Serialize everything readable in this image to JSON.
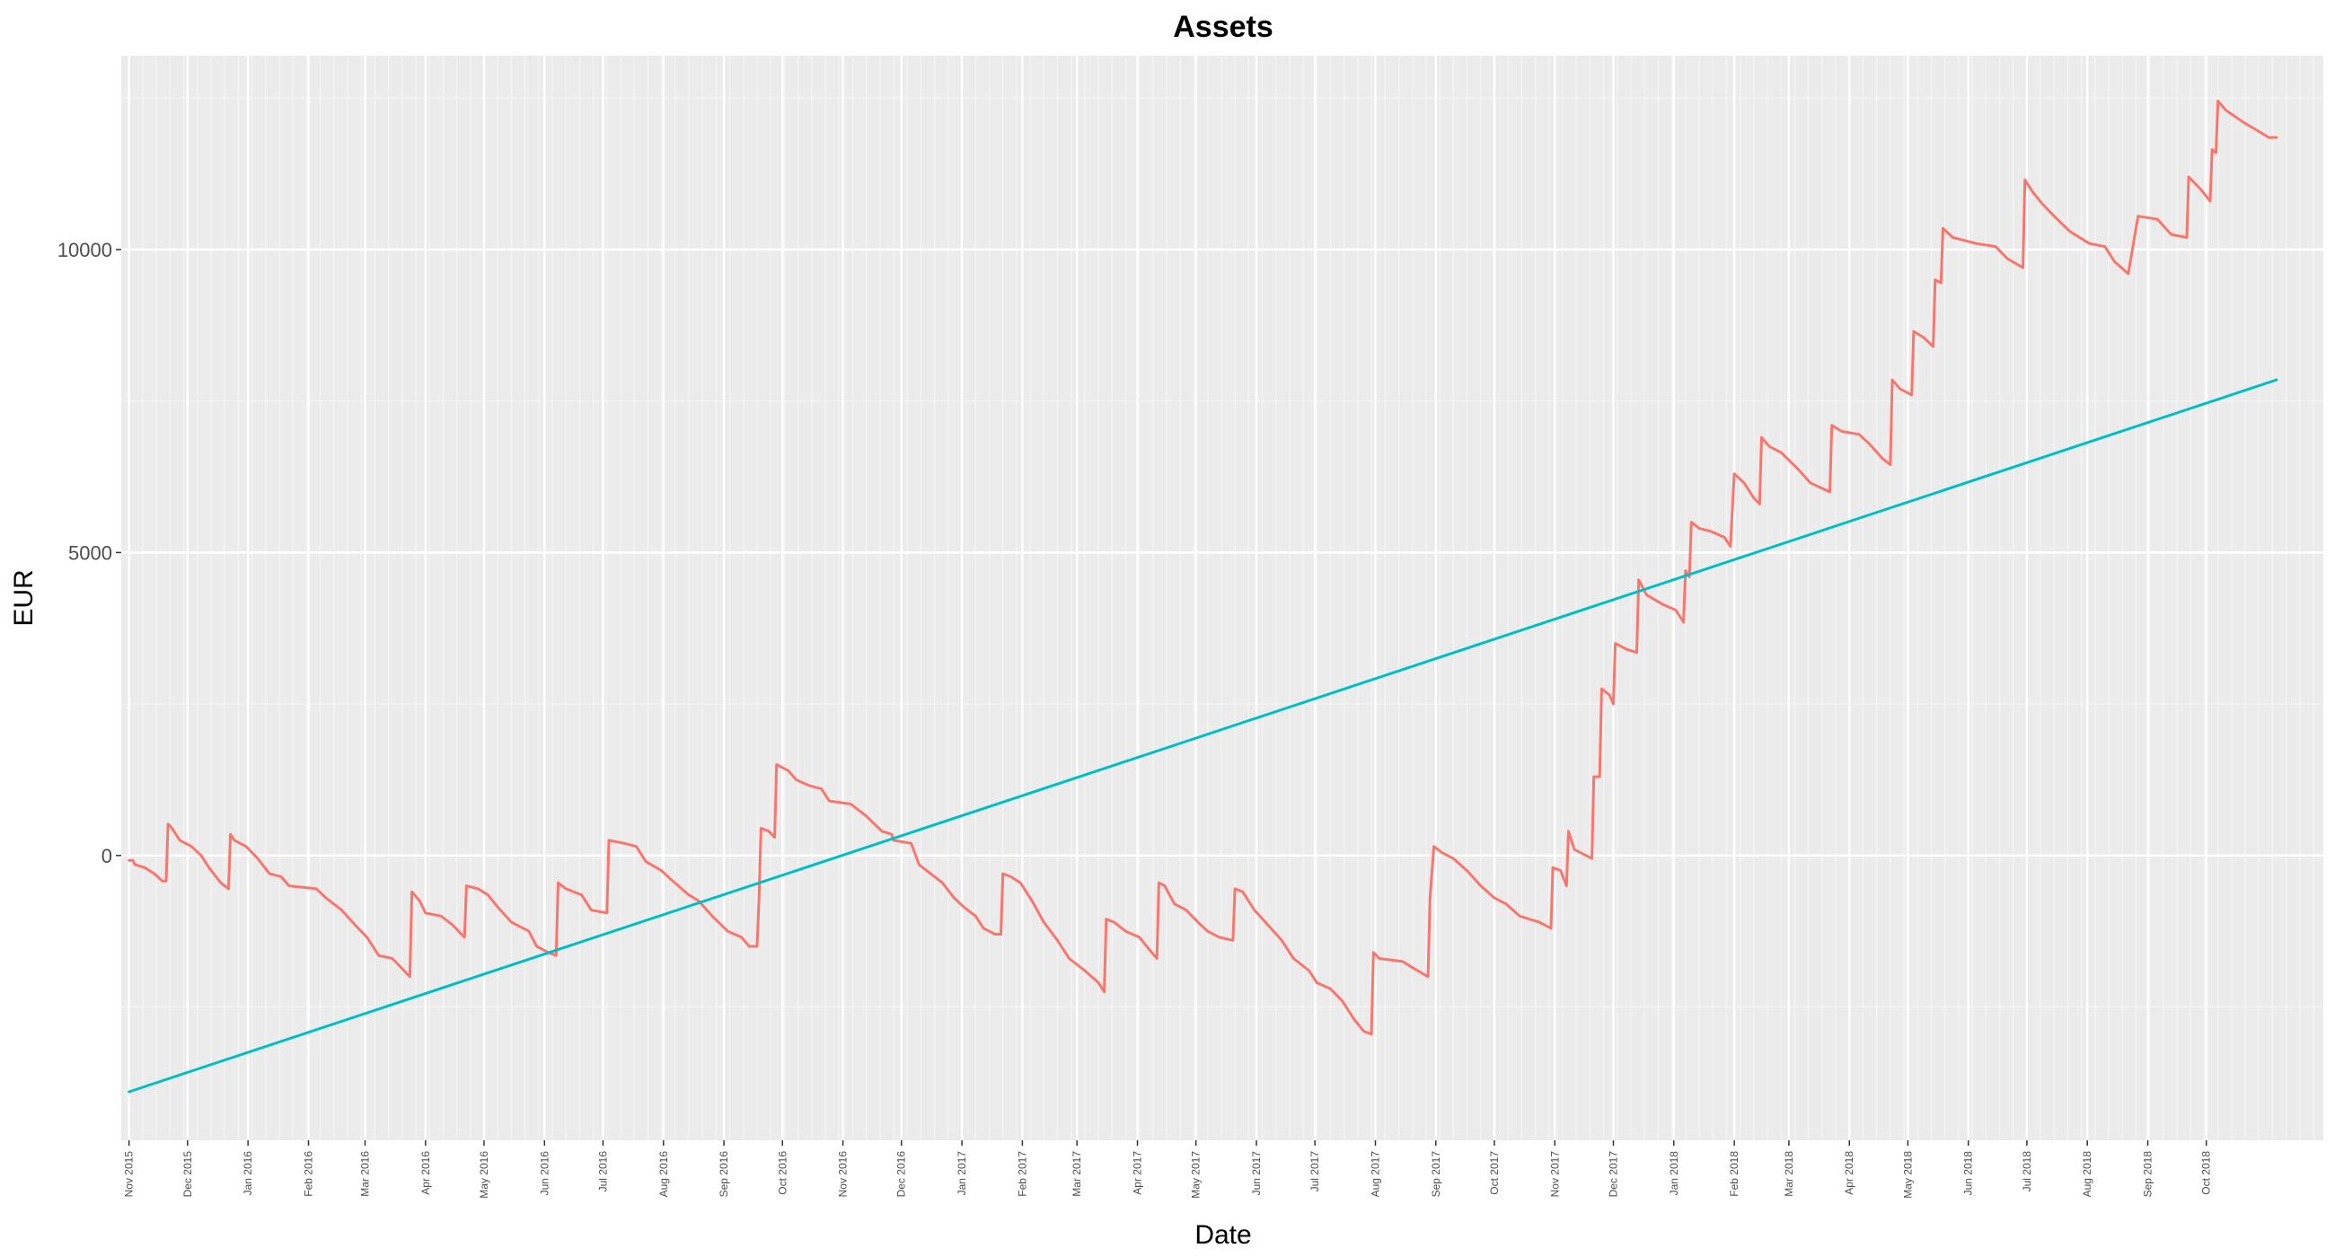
{
  "chart_data": {
    "type": "line",
    "title": "Assets",
    "xlabel": "Date",
    "ylabel": "EUR",
    "x_range": [
      "2015-10-28",
      "2018-11-30"
    ],
    "ylim": [
      -4700,
      13200
    ],
    "yticks": [
      0,
      5000,
      10000
    ],
    "ytick_labels": [
      "0",
      "5000",
      "10000"
    ],
    "xticks": [
      "2015-11-01",
      "2015-12-01",
      "2016-01-01",
      "2016-02-01",
      "2016-03-01",
      "2016-04-01",
      "2016-05-01",
      "2016-06-01",
      "2016-07-01",
      "2016-08-01",
      "2016-09-01",
      "2016-10-01",
      "2016-11-01",
      "2016-12-01",
      "2017-01-01",
      "2017-02-01",
      "2017-03-01",
      "2017-04-01",
      "2017-05-01",
      "2017-06-01",
      "2017-07-01",
      "2017-08-01",
      "2017-09-01",
      "2017-10-01",
      "2017-11-01",
      "2017-12-01",
      "2018-01-01",
      "2018-02-01",
      "2018-03-01",
      "2018-04-01",
      "2018-05-01",
      "2018-06-01",
      "2018-07-01",
      "2018-08-01",
      "2018-09-01",
      "2018-10-01"
    ],
    "xtick_labels": [
      "Nov 2015",
      "Dec 2015",
      "Jan 2016",
      "Feb 2016",
      "Mar 2016",
      "Apr 2016",
      "May 2016",
      "Jun 2016",
      "Jul 2016",
      "Aug 2016",
      "Sep 2016",
      "Oct 2016",
      "Nov 2016",
      "Dec 2016",
      "Jan 2017",
      "Feb 2017",
      "Mar 2017",
      "Apr 2017",
      "May 2017",
      "Jun 2017",
      "Jul 2017",
      "Aug 2017",
      "Sep 2017",
      "Oct 2017",
      "Nov 2017",
      "Dec 2017",
      "Jan 2018",
      "Feb 2018",
      "Mar 2018",
      "Apr 2018",
      "May 2018",
      "Jun 2018",
      "Jul 2018",
      "Aug 2018",
      "Sep 2018",
      "Oct 2018"
    ],
    "grid": true,
    "legend": "none",
    "series": [
      {
        "color": "#f8766d",
        "points": [
          [
            "2015-11-01",
            -80
          ],
          [
            "2015-11-03",
            -80
          ],
          [
            "2015-11-04",
            -150
          ],
          [
            "2015-11-09",
            -200
          ],
          [
            "2015-11-14",
            -300
          ],
          [
            "2015-11-18",
            -420
          ],
          [
            "2015-11-20",
            -420
          ],
          [
            "2015-11-21",
            520
          ],
          [
            "2015-11-23",
            450
          ],
          [
            "2015-11-27",
            250
          ],
          [
            "2015-12-03",
            150
          ],
          [
            "2015-12-08",
            0
          ],
          [
            "2015-12-12",
            -200
          ],
          [
            "2015-12-18",
            -450
          ],
          [
            "2015-12-22",
            -550
          ],
          [
            "2015-12-23",
            350
          ],
          [
            "2015-12-25",
            250
          ],
          [
            "2015-12-31",
            150
          ],
          [
            "2016-01-06",
            -50
          ],
          [
            "2016-01-12",
            -300
          ],
          [
            "2016-01-18",
            -350
          ],
          [
            "2016-01-22",
            -500
          ],
          [
            "2016-02-05",
            -550
          ],
          [
            "2016-02-10",
            -700
          ],
          [
            "2016-02-18",
            -900
          ],
          [
            "2016-02-25",
            -1150
          ],
          [
            "2016-03-02",
            -1350
          ],
          [
            "2016-03-08",
            -1650
          ],
          [
            "2016-03-15",
            -1700
          ],
          [
            "2016-03-21",
            -1900
          ],
          [
            "2016-03-24",
            -2000
          ],
          [
            "2016-03-25",
            -600
          ],
          [
            "2016-03-29",
            -750
          ],
          [
            "2016-04-01",
            -950
          ],
          [
            "2016-04-09",
            -1000
          ],
          [
            "2016-04-15",
            -1150
          ],
          [
            "2016-04-21",
            -1350
          ],
          [
            "2016-04-22",
            -500
          ],
          [
            "2016-04-28",
            -550
          ],
          [
            "2016-05-03",
            -650
          ],
          [
            "2016-05-08",
            -850
          ],
          [
            "2016-05-15",
            -1100
          ],
          [
            "2016-05-24",
            -1250
          ],
          [
            "2016-05-28",
            -1500
          ],
          [
            "2016-06-03",
            -1600
          ],
          [
            "2016-06-07",
            -1650
          ],
          [
            "2016-06-08",
            -450
          ],
          [
            "2016-06-12",
            -550
          ],
          [
            "2016-06-20",
            -650
          ],
          [
            "2016-06-25",
            -900
          ],
          [
            "2016-07-03",
            -950
          ],
          [
            "2016-07-04",
            250
          ],
          [
            "2016-07-12",
            200
          ],
          [
            "2016-07-18",
            150
          ],
          [
            "2016-07-23",
            -100
          ],
          [
            "2016-07-31",
            -250
          ],
          [
            "2016-08-05",
            -400
          ],
          [
            "2016-08-14",
            -650
          ],
          [
            "2016-08-19",
            -750
          ],
          [
            "2016-08-26",
            -1000
          ],
          [
            "2016-09-03",
            -1250
          ],
          [
            "2016-09-10",
            -1350
          ],
          [
            "2016-09-14",
            -1500
          ],
          [
            "2016-09-18",
            -1500
          ],
          [
            "2016-09-19",
            -700
          ],
          [
            "2016-09-20",
            450
          ],
          [
            "2016-09-24",
            400
          ],
          [
            "2016-09-27",
            300
          ],
          [
            "2016-09-28",
            1500
          ],
          [
            "2016-10-04",
            1400
          ],
          [
            "2016-10-08",
            1250
          ],
          [
            "2016-10-15",
            1150
          ],
          [
            "2016-10-21",
            1100
          ],
          [
            "2016-10-25",
            900
          ],
          [
            "2016-11-05",
            850
          ],
          [
            "2016-11-13",
            650
          ],
          [
            "2016-11-21",
            400
          ],
          [
            "2016-11-26",
            350
          ],
          [
            "2016-11-27",
            250
          ],
          [
            "2016-12-06",
            200
          ],
          [
            "2016-12-10",
            -150
          ],
          [
            "2016-12-16",
            -300
          ],
          [
            "2016-12-22",
            -450
          ],
          [
            "2016-12-28",
            -700
          ],
          [
            "2017-01-02",
            -850
          ],
          [
            "2017-01-08",
            -1000
          ],
          [
            "2017-01-12",
            -1200
          ],
          [
            "2017-01-18",
            -1300
          ],
          [
            "2017-01-21",
            -1300
          ],
          [
            "2017-01-22",
            -300
          ],
          [
            "2017-01-26",
            -350
          ],
          [
            "2017-01-31",
            -450
          ],
          [
            "2017-02-06",
            -750
          ],
          [
            "2017-02-12",
            -1100
          ],
          [
            "2017-02-19",
            -1400
          ],
          [
            "2017-02-25",
            -1700
          ],
          [
            "2017-03-05",
            -1900
          ],
          [
            "2017-03-12",
            -2100
          ],
          [
            "2017-03-15",
            -2250
          ],
          [
            "2017-03-16",
            -1050
          ],
          [
            "2017-03-20",
            -1100
          ],
          [
            "2017-03-26",
            -1250
          ],
          [
            "2017-04-02",
            -1350
          ],
          [
            "2017-04-07",
            -1550
          ],
          [
            "2017-04-11",
            -1700
          ],
          [
            "2017-04-12",
            -450
          ],
          [
            "2017-04-15",
            -500
          ],
          [
            "2017-04-20",
            -800
          ],
          [
            "2017-04-26",
            -900
          ],
          [
            "2017-05-02",
            -1100
          ],
          [
            "2017-05-07",
            -1250
          ],
          [
            "2017-05-13",
            -1350
          ],
          [
            "2017-05-20",
            -1400
          ],
          [
            "2017-05-21",
            -550
          ],
          [
            "2017-05-25",
            -600
          ],
          [
            "2017-05-31",
            -900
          ],
          [
            "2017-06-07",
            -1150
          ],
          [
            "2017-06-14",
            -1400
          ],
          [
            "2017-06-20",
            -1700
          ],
          [
            "2017-06-28",
            -1900
          ],
          [
            "2017-07-02",
            -2100
          ],
          [
            "2017-07-09",
            -2200
          ],
          [
            "2017-07-15",
            -2400
          ],
          [
            "2017-07-21",
            -2700
          ],
          [
            "2017-07-26",
            -2900
          ],
          [
            "2017-07-30",
            -2950
          ],
          [
            "2017-07-31",
            -1600
          ],
          [
            "2017-08-03",
            -1700
          ],
          [
            "2017-08-15",
            -1750
          ],
          [
            "2017-08-20",
            -1850
          ],
          [
            "2017-08-28",
            -2000
          ],
          [
            "2017-08-29",
            -700
          ],
          [
            "2017-08-31",
            150
          ],
          [
            "2017-09-04",
            50
          ],
          [
            "2017-09-10",
            -50
          ],
          [
            "2017-09-17",
            -250
          ],
          [
            "2017-09-24",
            -500
          ],
          [
            "2017-10-01",
            -700
          ],
          [
            "2017-10-07",
            -800
          ],
          [
            "2017-10-14",
            -1000
          ],
          [
            "2017-10-24",
            -1100
          ],
          [
            "2017-10-30",
            -1200
          ],
          [
            "2017-10-31",
            -200
          ],
          [
            "2017-11-04",
            -250
          ],
          [
            "2017-11-07",
            -500
          ],
          [
            "2017-11-08",
            400
          ],
          [
            "2017-11-11",
            100
          ],
          [
            "2017-11-20",
            -50
          ],
          [
            "2017-11-21",
            1300
          ],
          [
            "2017-11-24",
            1300
          ],
          [
            "2017-11-25",
            2750
          ],
          [
            "2017-11-29",
            2650
          ],
          [
            "2017-12-01",
            2500
          ],
          [
            "2017-12-02",
            3500
          ],
          [
            "2017-12-08",
            3400
          ],
          [
            "2017-12-13",
            3350
          ],
          [
            "2017-12-14",
            4550
          ],
          [
            "2017-12-18",
            4300
          ],
          [
            "2017-12-26",
            4150
          ],
          [
            "2018-01-02",
            4050
          ],
          [
            "2018-01-06",
            3850
          ],
          [
            "2018-01-07",
            4700
          ],
          [
            "2018-01-09",
            4600
          ],
          [
            "2018-01-10",
            5500
          ],
          [
            "2018-01-14",
            5400
          ],
          [
            "2018-01-20",
            5350
          ],
          [
            "2018-01-27",
            5250
          ],
          [
            "2018-01-30",
            5100
          ],
          [
            "2018-02-01",
            6300
          ],
          [
            "2018-02-06",
            6150
          ],
          [
            "2018-02-11",
            5900
          ],
          [
            "2018-02-14",
            5800
          ],
          [
            "2018-02-15",
            6900
          ],
          [
            "2018-02-19",
            6750
          ],
          [
            "2018-02-25",
            6650
          ],
          [
            "2018-03-05",
            6400
          ],
          [
            "2018-03-12",
            6150
          ],
          [
            "2018-03-22",
            6000
          ],
          [
            "2018-03-23",
            7100
          ],
          [
            "2018-03-28",
            7000
          ],
          [
            "2018-04-06",
            6950
          ],
          [
            "2018-04-11",
            6800
          ],
          [
            "2018-04-18",
            6550
          ],
          [
            "2018-04-22",
            6450
          ],
          [
            "2018-04-23",
            7850
          ],
          [
            "2018-04-27",
            7700
          ],
          [
            "2018-05-03",
            7600
          ],
          [
            "2018-05-04",
            8650
          ],
          [
            "2018-05-09",
            8550
          ],
          [
            "2018-05-14",
            8400
          ],
          [
            "2018-05-15",
            9500
          ],
          [
            "2018-05-18",
            9450
          ],
          [
            "2018-05-19",
            10350
          ],
          [
            "2018-05-24",
            10200
          ],
          [
            "2018-06-05",
            10100
          ],
          [
            "2018-06-15",
            10050
          ],
          [
            "2018-06-21",
            9850
          ],
          [
            "2018-06-29",
            9700
          ],
          [
            "2018-06-30",
            11150
          ],
          [
            "2018-07-04",
            10950
          ],
          [
            "2018-07-09",
            10750
          ],
          [
            "2018-07-15",
            10550
          ],
          [
            "2018-07-23",
            10300
          ],
          [
            "2018-08-02",
            10100
          ],
          [
            "2018-08-10",
            10050
          ],
          [
            "2018-08-15",
            9800
          ],
          [
            "2018-08-22",
            9600
          ],
          [
            "2018-08-27",
            10550
          ],
          [
            "2018-09-06",
            10500
          ],
          [
            "2018-09-13",
            10250
          ],
          [
            "2018-09-21",
            10200
          ],
          [
            "2018-09-22",
            11200
          ],
          [
            "2018-09-28",
            11000
          ],
          [
            "2018-10-03",
            10800
          ],
          [
            "2018-10-04",
            11650
          ],
          [
            "2018-10-06",
            11600
          ],
          [
            "2018-10-07",
            12450
          ],
          [
            "2018-10-11",
            12300
          ],
          [
            "2018-10-20",
            12100
          ],
          [
            "2018-10-28",
            11950
          ],
          [
            "2018-11-02",
            11850
          ],
          [
            "2018-11-06",
            11850
          ]
        ]
      },
      {
        "color": "#00bfc4",
        "points": [
          [
            "2015-11-01",
            -3900
          ],
          [
            "2018-11-06",
            7850
          ]
        ]
      }
    ]
  }
}
